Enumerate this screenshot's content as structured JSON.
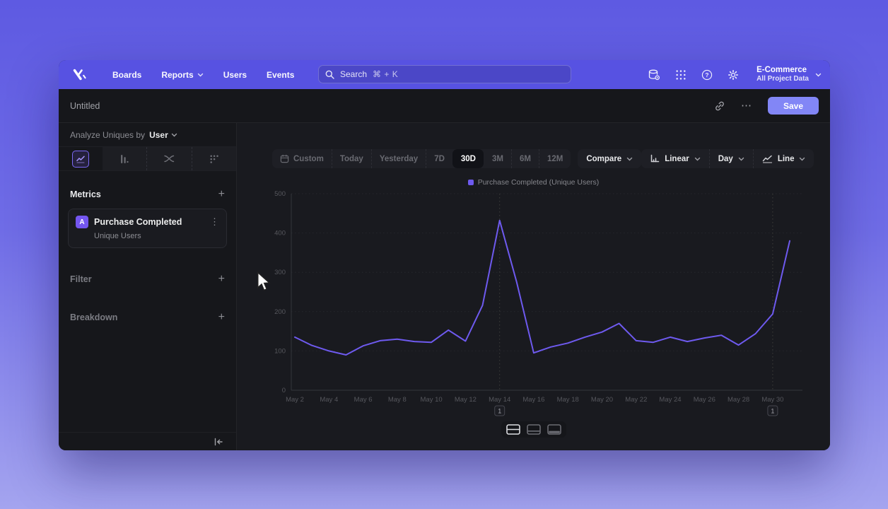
{
  "nav": {
    "items": [
      {
        "label": "Boards",
        "chevron": false
      },
      {
        "label": "Reports",
        "chevron": true
      },
      {
        "label": "Users",
        "chevron": false
      },
      {
        "label": "Events",
        "chevron": false
      }
    ],
    "search": {
      "placeholder": "Search",
      "shortcut": "⌘ + K"
    },
    "right_icons": [
      "data-management-icon",
      "apps-grid-icon",
      "help-icon",
      "settings-gear-icon"
    ],
    "project": {
      "name": "E-Commerce",
      "scope": "All Project Data"
    }
  },
  "header": {
    "title": "Untitled",
    "save_label": "Save"
  },
  "icons": {
    "more": "⋯",
    "kebab": "⋮",
    "plus": "+"
  },
  "sidebar": {
    "analyze_prefix": "Analyze Uniques by",
    "analyze_value": "User",
    "tabs": [
      "insights-line-tab",
      "funnel-bars-tab",
      "flows-tab",
      "retention-dots-tab"
    ],
    "active_tab": 0,
    "metrics_title": "Metrics",
    "metric_card": {
      "badge": "A",
      "title": "Purchase Completed",
      "subtitle": "Unique Users"
    },
    "filter_title": "Filter",
    "breakdown_title": "Breakdown"
  },
  "toolbar": {
    "ranges": [
      "Custom",
      "Today",
      "Yesterday",
      "7D",
      "30D",
      "3M",
      "6M",
      "12M"
    ],
    "active_range": "30D",
    "compare_label": "Compare",
    "scale_label": "Linear",
    "interval_label": "Day",
    "chart_type_label": "Line"
  },
  "chart_data": {
    "type": "line",
    "legend": "Purchase Completed (Unique Users)",
    "ylim": [
      0,
      500
    ],
    "yticks": [
      0,
      100,
      200,
      300,
      400,
      500
    ],
    "x_tick_step": 2,
    "grid": "dashed-horizontal",
    "legend_position": "top-center",
    "series": [
      {
        "name": "Purchase Completed (Unique Users)",
        "color": "#6E5AEF",
        "x": [
          "May 2",
          "May 3",
          "May 4",
          "May 5",
          "May 6",
          "May 7",
          "May 8",
          "May 9",
          "May 10",
          "May 11",
          "May 12",
          "May 13",
          "May 14",
          "May 15",
          "May 16",
          "May 17",
          "May 18",
          "May 19",
          "May 20",
          "May 21",
          "May 22",
          "May 23",
          "May 24",
          "May 25",
          "May 26",
          "May 27",
          "May 28",
          "May 29",
          "May 30",
          "May 31"
        ],
        "values": [
          135,
          114,
          100,
          90,
          113,
          126,
          130,
          124,
          122,
          153,
          125,
          216,
          432,
          275,
          95,
          110,
          120,
          135,
          148,
          170,
          126,
          122,
          135,
          124,
          133,
          140,
          115,
          144,
          194,
          380
        ]
      }
    ],
    "annotations": [
      {
        "label": "1",
        "x": "May 14"
      },
      {
        "label": "1",
        "x": "May 30"
      }
    ]
  },
  "footer": {
    "view_toggles": [
      "split-rows-icon",
      "chart-over-table-icon",
      "table-bottom-icon"
    ],
    "active_toggle": 0
  },
  "colors": {
    "accent": "#7456F0",
    "nav_bar": "#5752E2",
    "save_button": "#8286F6",
    "window_bg": "#16171B"
  }
}
